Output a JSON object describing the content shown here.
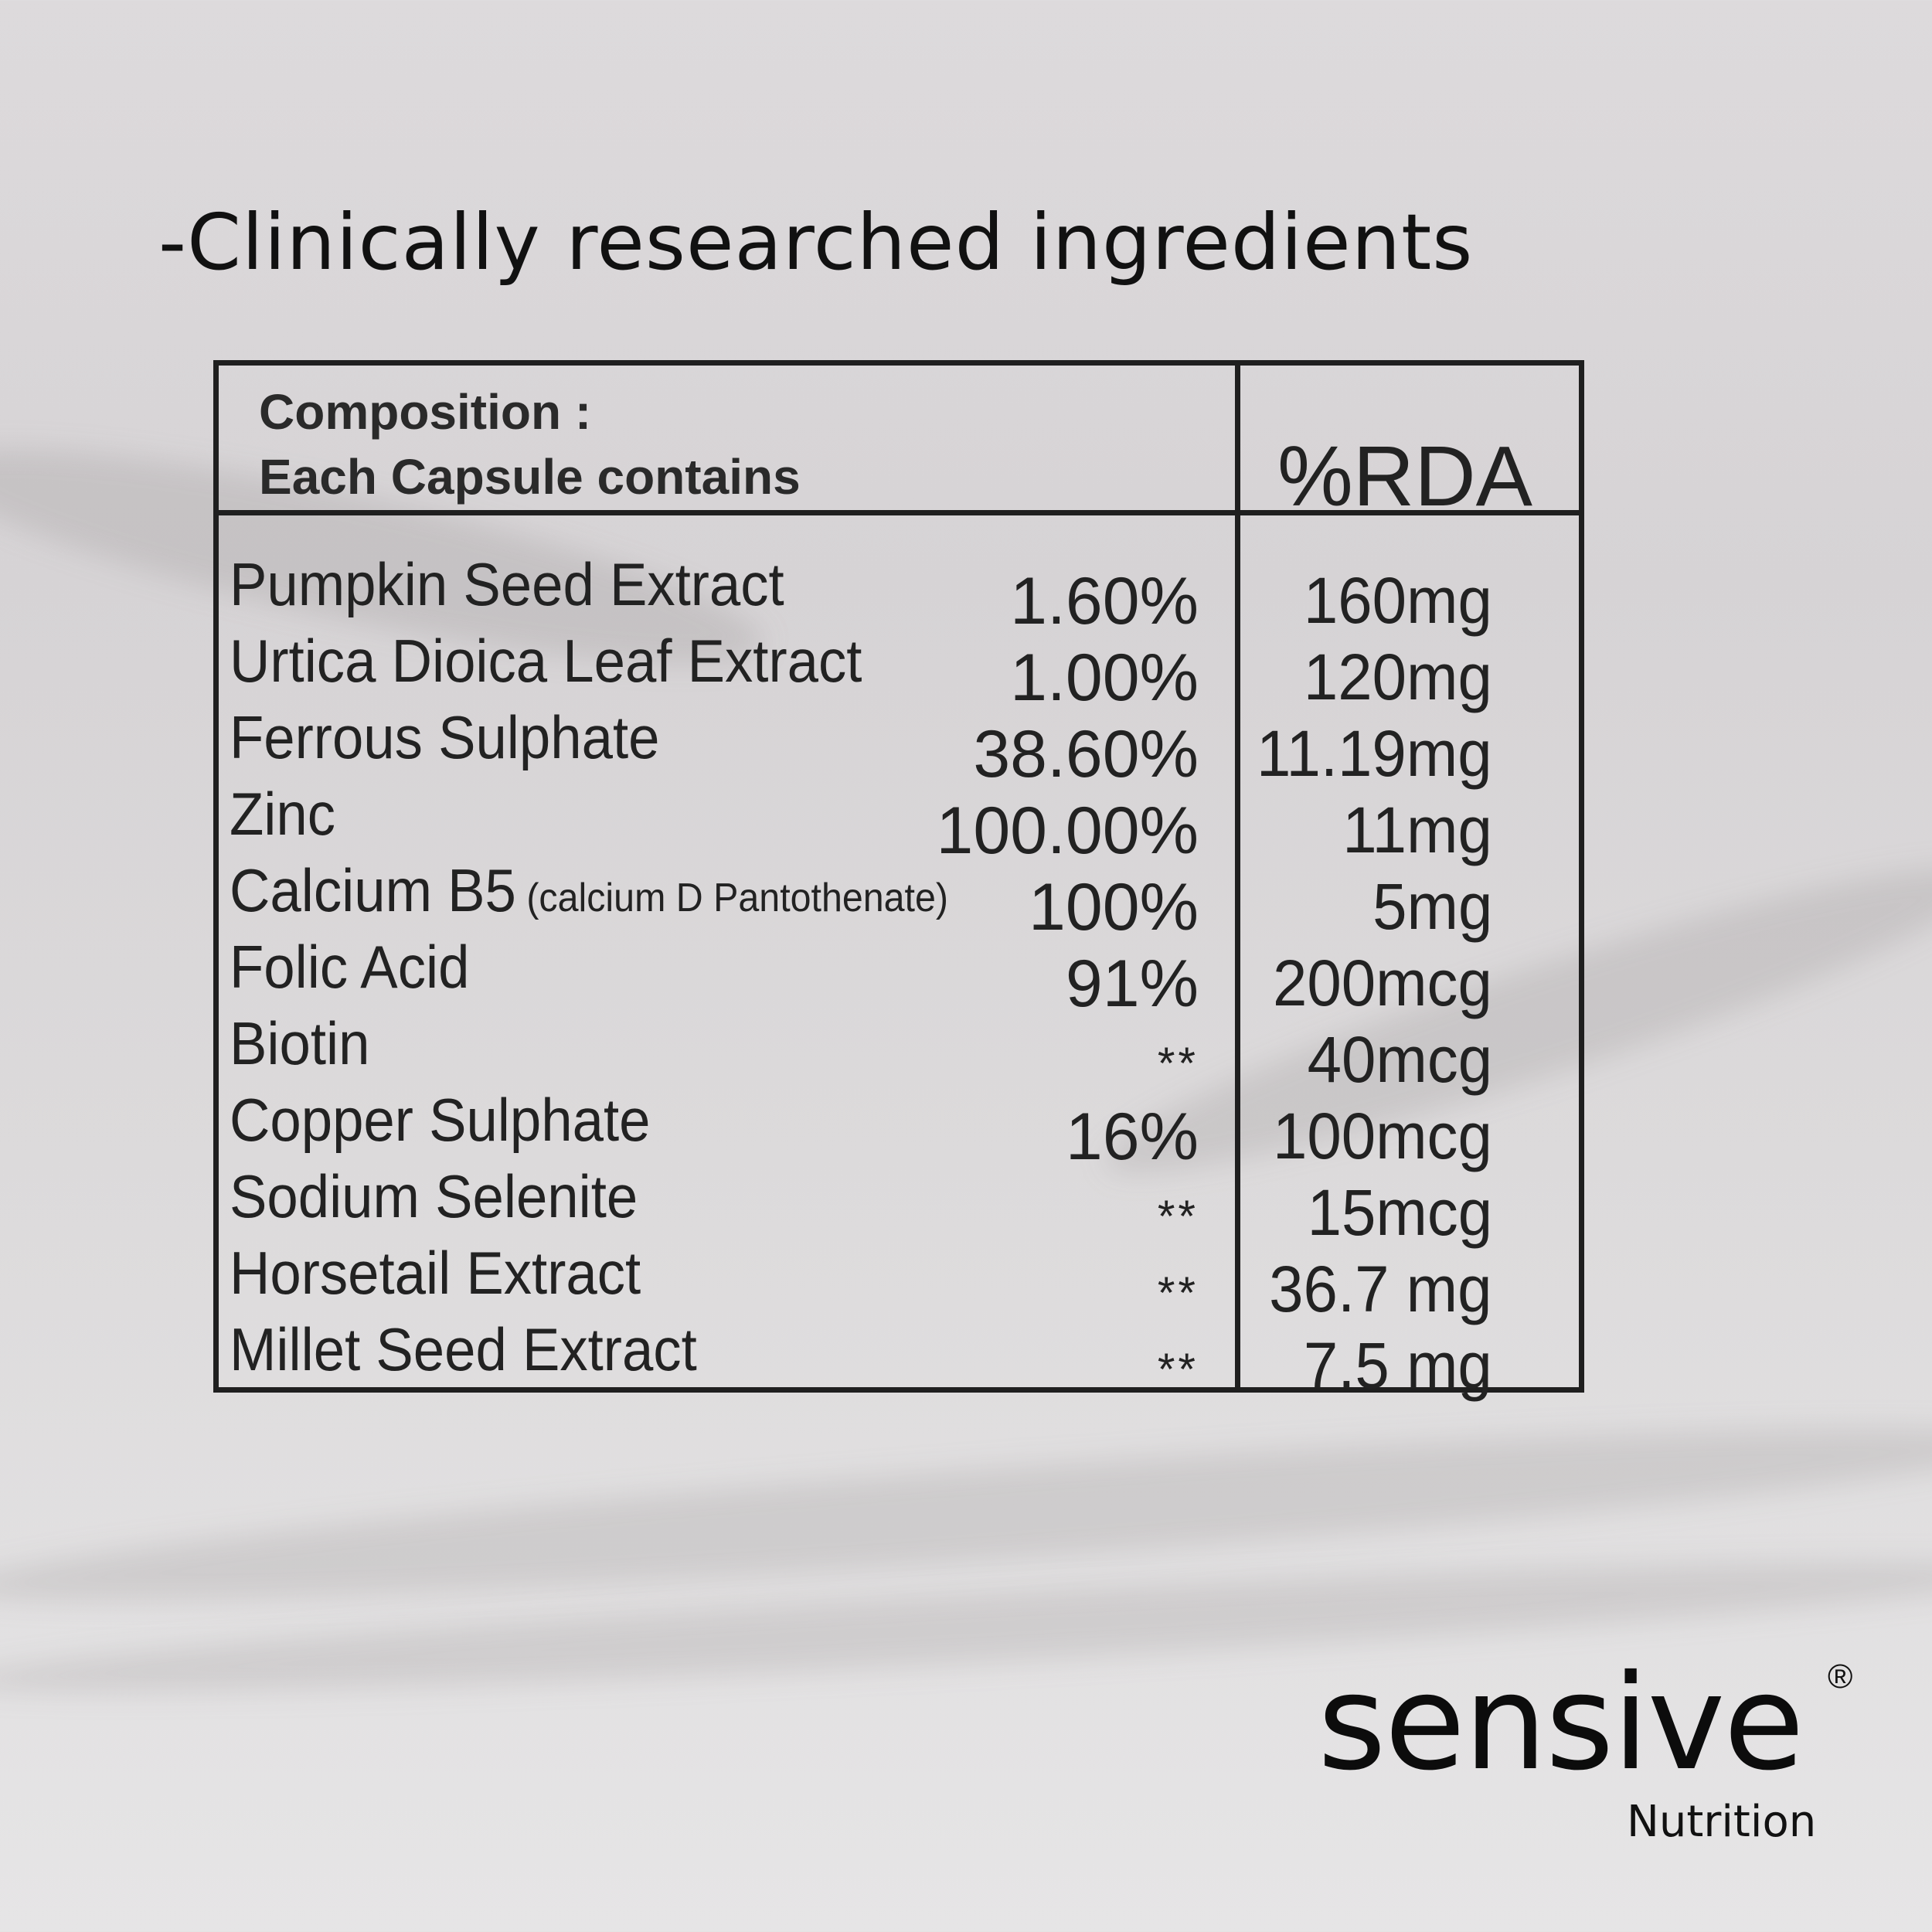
{
  "headline": "-Clinically researched ingredients",
  "table": {
    "heading_line1": "Composition :",
    "heading_line2": "Each Capsule contains",
    "rda_heading": "%RDA",
    "rows": [
      {
        "name": "Pumpkin Seed Extract",
        "note": "",
        "percent": "1.60%",
        "amount": "160mg"
      },
      {
        "name": "Urtica Dioica Leaf Extract",
        "note": "",
        "percent": "1.00%",
        "amount": "120mg"
      },
      {
        "name": "Ferrous Sulphate",
        "note": "",
        "percent": "38.60%",
        "amount": "11.19mg"
      },
      {
        "name": "Zinc",
        "note": "",
        "percent": "100.00%",
        "amount": "11mg"
      },
      {
        "name": "Calcium B5",
        "note": "(calcium D Pantothenate)",
        "percent": "100%",
        "amount": "5mg"
      },
      {
        "name": "Folic Acid",
        "note": "",
        "percent": "91%",
        "amount": "200mcg"
      },
      {
        "name": "Biotin",
        "note": "",
        "percent": "**",
        "amount": "40mcg"
      },
      {
        "name": "Copper Sulphate",
        "note": "",
        "percent": "16%",
        "amount": "100mcg"
      },
      {
        "name": "Sodium Selenite",
        "note": "",
        "percent": "**",
        "amount": "15mcg"
      },
      {
        "name": "Horsetail Extract",
        "note": "",
        "percent": "**",
        "amount": "36.7 mg"
      },
      {
        "name": "Millet Seed Extract",
        "note": "",
        "percent": "**",
        "amount": "7.5 mg"
      }
    ]
  },
  "brand": {
    "name": "sensive",
    "registered": "®",
    "subtitle": "Nutrition"
  }
}
